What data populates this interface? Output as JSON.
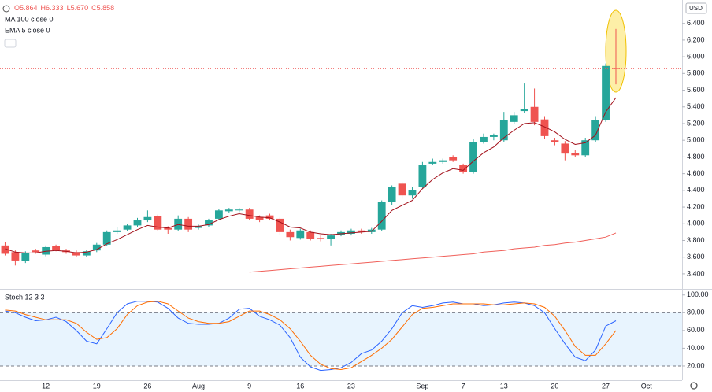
{
  "chart_data": [
    {
      "type": "candlestick",
      "legend": [
        "O5.864",
        "H6.333",
        "L5.670",
        "C5.858"
      ],
      "currency": "USD",
      "categories": [
        null,
        null,
        null,
        null,
        "12",
        null,
        null,
        null,
        null,
        "19",
        null,
        null,
        null,
        null,
        "26",
        null,
        null,
        null,
        null,
        "Aug",
        null,
        null,
        null,
        null,
        "9",
        null,
        null,
        null,
        null,
        "16",
        null,
        null,
        null,
        null,
        "23",
        null,
        null,
        null,
        null,
        null,
        null,
        "Sep",
        null,
        null,
        null,
        "7",
        null,
        null,
        null,
        "13",
        null,
        null,
        null,
        null,
        "20",
        null,
        null,
        null,
        null,
        "27",
        null,
        null,
        null,
        "Oct",
        null,
        null,
        null
      ],
      "open": [
        3.74,
        3.66,
        3.55,
        3.68,
        3.63,
        3.73,
        3.68,
        3.66,
        3.62,
        3.68,
        3.75,
        3.9,
        3.93,
        3.98,
        4.04,
        4.09,
        3.95,
        3.93,
        4.06,
        3.95,
        3.98,
        4.06,
        4.15,
        4.16,
        4.17,
        4.08,
        4.1,
        4.06,
        3.9,
        3.83,
        3.9,
        3.83,
        3.82,
        3.87,
        3.88,
        3.92,
        3.9,
        3.93,
        4.26,
        4.48,
        4.34,
        4.44,
        4.72,
        4.74,
        4.8,
        4.7,
        4.62,
        4.98,
        5.04,
        5.0,
        5.22,
        5.35,
        5.4,
        5.25,
        5.0,
        4.96,
        4.85,
        4.82,
        5.0,
        5.24,
        5.864,
        null,
        null,
        null,
        null,
        null,
        null
      ],
      "high": [
        3.78,
        3.68,
        3.67,
        3.7,
        3.74,
        3.75,
        3.7,
        3.68,
        3.69,
        3.77,
        3.92,
        3.96,
        4.0,
        4.07,
        4.16,
        4.11,
        3.97,
        4.1,
        4.08,
        3.99,
        4.06,
        4.18,
        4.19,
        4.19,
        4.19,
        4.1,
        4.12,
        4.08,
        3.93,
        3.94,
        3.92,
        3.86,
        3.88,
        3.92,
        3.94,
        3.94,
        3.95,
        4.28,
        4.46,
        4.5,
        4.44,
        4.74,
        4.78,
        4.78,
        4.82,
        4.72,
        5.02,
        5.08,
        5.08,
        5.34,
        5.34,
        5.68,
        5.62,
        5.28,
        5.03,
        4.99,
        4.88,
        5.03,
        5.28,
        5.92,
        6.333,
        null,
        null,
        null,
        null,
        null,
        null
      ],
      "low": [
        3.62,
        3.5,
        3.53,
        3.64,
        3.61,
        3.67,
        3.64,
        3.6,
        3.6,
        3.66,
        3.73,
        3.88,
        3.91,
        3.96,
        4.02,
        3.91,
        3.88,
        3.91,
        3.9,
        3.93,
        3.96,
        4.04,
        4.13,
        4.14,
        4.04,
        4.02,
        4.04,
        3.86,
        3.8,
        3.81,
        3.8,
        3.79,
        3.74,
        3.85,
        3.86,
        3.88,
        3.88,
        3.91,
        4.22,
        4.3,
        4.3,
        4.42,
        4.7,
        4.72,
        4.74,
        4.6,
        4.6,
        4.96,
        5.0,
        4.98,
        5.2,
        5.33,
        5.18,
        5.02,
        4.94,
        4.76,
        4.8,
        4.8,
        4.98,
        5.22,
        5.67,
        null,
        null,
        null,
        null,
        null,
        null
      ],
      "close": [
        3.64,
        3.56,
        3.65,
        3.66,
        3.72,
        3.69,
        3.66,
        3.62,
        3.67,
        3.75,
        3.9,
        3.92,
        3.98,
        4.04,
        4.08,
        3.93,
        3.93,
        4.06,
        3.93,
        3.97,
        4.04,
        4.16,
        4.17,
        4.17,
        4.06,
        4.05,
        4.06,
        3.9,
        3.84,
        3.92,
        3.82,
        3.82,
        3.86,
        3.9,
        3.92,
        3.9,
        3.93,
        4.26,
        4.44,
        4.34,
        4.4,
        4.7,
        4.74,
        4.76,
        4.76,
        4.62,
        4.98,
        5.04,
        5.06,
        5.24,
        5.3,
        5.37,
        5.22,
        5.05,
        4.98,
        4.84,
        4.82,
        5.0,
        5.24,
        5.89,
        5.858,
        null,
        null,
        null,
        null,
        null,
        null
      ],
      "up_color": "#26a69a",
      "down_color": "#ef5350",
      "series": [
        {
          "name": "MA 100 close 0",
          "color": "#f0605a",
          "values": [
            null,
            null,
            null,
            null,
            null,
            null,
            null,
            null,
            null,
            null,
            null,
            null,
            null,
            null,
            null,
            null,
            null,
            null,
            null,
            null,
            null,
            null,
            null,
            null,
            3.42,
            3.43,
            3.44,
            3.45,
            3.46,
            3.47,
            3.48,
            3.49,
            3.5,
            3.51,
            3.52,
            3.53,
            3.54,
            3.55,
            3.56,
            3.57,
            3.58,
            3.59,
            3.6,
            3.61,
            3.62,
            3.63,
            3.64,
            3.66,
            3.67,
            3.68,
            3.7,
            3.71,
            3.72,
            3.74,
            3.75,
            3.77,
            3.78,
            3.8,
            3.82,
            3.84,
            3.89,
            null,
            null,
            null,
            null,
            null,
            null
          ]
        },
        {
          "name": "EMA 5 close 0",
          "color": "#a3101a",
          "values": [
            3.7,
            3.66,
            3.65,
            3.65,
            3.67,
            3.68,
            3.67,
            3.65,
            3.66,
            3.69,
            3.76,
            3.81,
            3.87,
            3.93,
            3.98,
            3.96,
            3.95,
            3.99,
            3.97,
            3.97,
            3.99,
            4.05,
            4.09,
            4.12,
            4.1,
            4.08,
            4.07,
            4.02,
            3.96,
            3.95,
            3.9,
            3.88,
            3.87,
            3.88,
            3.89,
            3.9,
            3.91,
            4.03,
            4.16,
            4.22,
            4.28,
            4.42,
            4.53,
            4.61,
            4.66,
            4.64,
            4.75,
            4.85,
            4.92,
            5.03,
            5.12,
            5.2,
            5.21,
            5.16,
            5.1,
            5.01,
            4.95,
            4.97,
            5.06,
            5.34,
            5.51,
            null,
            null,
            null,
            null,
            null,
            null
          ]
        }
      ],
      "ylim": [
        3.22,
        6.68
      ],
      "yticks": [
        {
          "value": 3.4,
          "label": "3.400"
        },
        {
          "value": 3.6,
          "label": "3.600"
        },
        {
          "value": 3.8,
          "label": "3.800"
        },
        {
          "value": 4.0,
          "label": "4.000"
        },
        {
          "value": 4.2,
          "label": "4.200"
        },
        {
          "value": 4.4,
          "label": "4.400"
        },
        {
          "value": 4.6,
          "label": "4.600"
        },
        {
          "value": 4.8,
          "label": "4.800"
        },
        {
          "value": 5.0,
          "label": "5.000"
        },
        {
          "value": 5.2,
          "label": "5.200"
        },
        {
          "value": 5.4,
          "label": "5.400"
        },
        {
          "value": 5.6,
          "label": "5.600"
        },
        {
          "value": 5.8,
          "label": "5.800"
        },
        {
          "value": 6.0,
          "label": "6.000"
        },
        {
          "value": 6.2,
          "label": "6.200"
        },
        {
          "value": 6.4,
          "label": "6.400"
        }
      ]
    },
    {
      "type": "line",
      "title": "Stoch 12 3 3",
      "band": [
        20,
        80
      ],
      "band_color": "#2196f3",
      "series": [
        {
          "color": "#2962ff",
          "values": [
            82,
            80,
            75,
            71,
            72,
            75,
            70,
            60,
            48,
            45,
            62,
            80,
            90,
            93,
            93,
            92,
            85,
            74,
            68,
            67,
            67,
            68,
            74,
            84,
            85,
            76,
            72,
            66,
            52,
            30,
            19,
            15,
            16,
            18,
            24,
            34,
            38,
            48,
            62,
            80,
            88,
            86,
            88,
            91,
            92,
            90,
            90,
            88,
            89,
            91,
            92,
            91,
            88,
            80,
            62,
            45,
            30,
            26,
            38,
            65,
            71,
            null,
            null,
            null,
            null,
            null,
            null
          ]
        },
        {
          "color": "#ff6d00",
          "values": [
            83,
            82,
            78,
            75,
            72,
            72,
            72,
            68,
            58,
            50,
            52,
            62,
            78,
            88,
            92,
            93,
            90,
            82,
            74,
            70,
            68,
            68,
            70,
            76,
            82,
            82,
            78,
            72,
            62,
            48,
            32,
            22,
            17,
            16,
            18,
            25,
            32,
            40,
            50,
            64,
            78,
            85,
            86,
            88,
            90,
            90,
            90,
            90,
            89,
            89,
            90,
            91,
            90,
            86,
            76,
            60,
            42,
            32,
            32,
            45,
            60,
            null,
            null,
            null,
            null,
            null,
            null
          ]
        }
      ],
      "ylim": [
        4,
        106
      ],
      "yticks": [
        {
          "value": 20,
          "label": "20.00"
        },
        {
          "value": 40,
          "label": "40.00"
        },
        {
          "value": 60,
          "label": "60.00"
        },
        {
          "value": 80,
          "label": "80.00"
        },
        {
          "value": 100,
          "label": "100.00"
        }
      ]
    }
  ]
}
